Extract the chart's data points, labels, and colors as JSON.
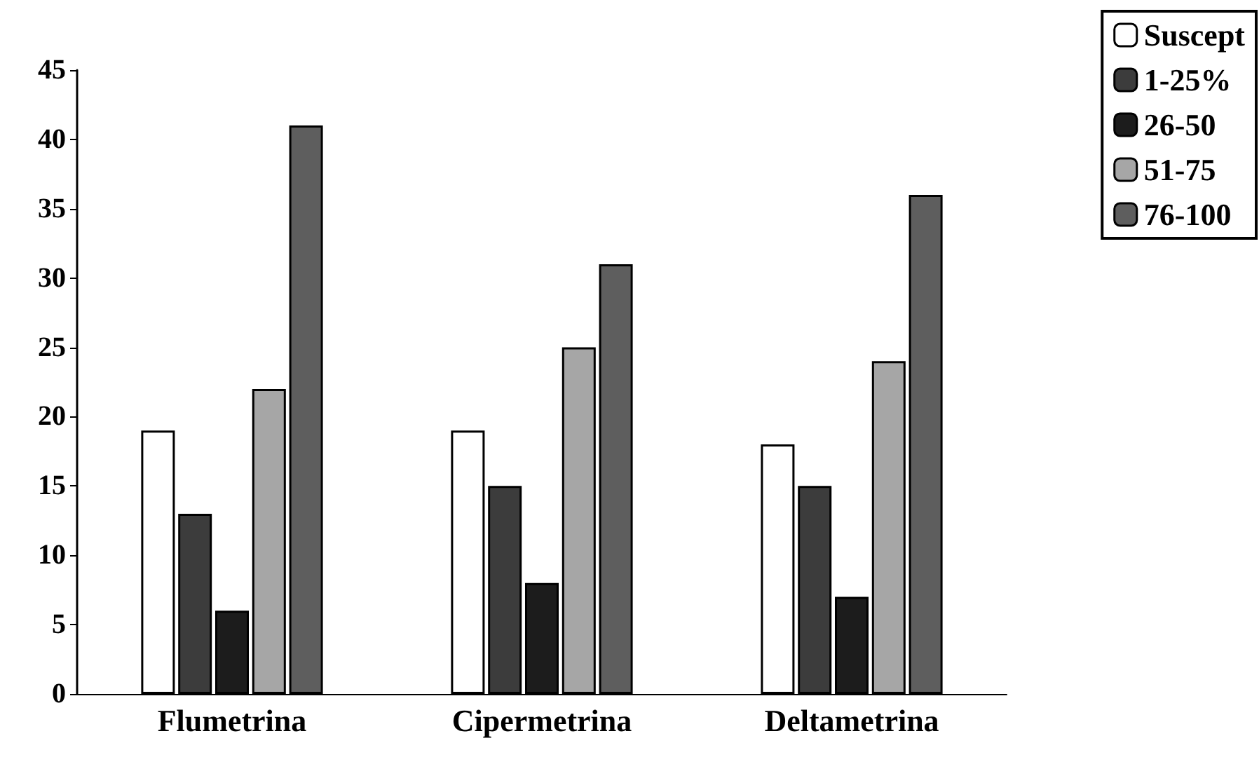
{
  "chart_data": {
    "type": "bar",
    "categories": [
      "Flumetrina",
      "Cipermetrina",
      "Deltametrina"
    ],
    "series": [
      {
        "name": "Suscept",
        "color": "#ffffff",
        "values": [
          19,
          19,
          18
        ]
      },
      {
        "name": "1-25%",
        "color": "#3c3c3c",
        "values": [
          13,
          15,
          15
        ]
      },
      {
        "name": "26-50",
        "color": "#1c1c1c",
        "values": [
          6,
          8,
          7
        ]
      },
      {
        "name": "51-75",
        "color": "#a6a6a6",
        "values": [
          22,
          25,
          24
        ]
      },
      {
        "name": "76-100",
        "color": "#5e5e5e",
        "values": [
          41,
          31,
          36
        ]
      }
    ],
    "ylim": [
      0,
      45
    ],
    "yticks": [
      0,
      5,
      10,
      15,
      20,
      25,
      30,
      35,
      40,
      45
    ],
    "grid": false,
    "legend": "top right"
  }
}
